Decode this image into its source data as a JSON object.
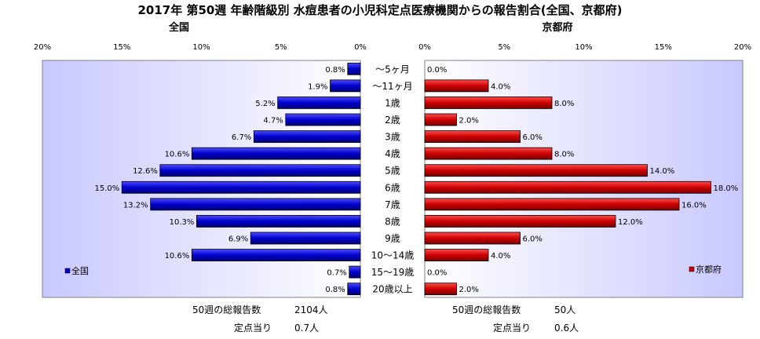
{
  "chart_data": {
    "type": "bar",
    "title": "2017年 第50週 年齢階級別 水痘患者の小児科定点医療機関からの報告割合(全国、京都府)",
    "categories": [
      "～5ヶ月",
      "～11ヶ月",
      "1歳",
      "2歳",
      "3歳",
      "4歳",
      "5歳",
      "6歳",
      "7歳",
      "8歳",
      "9歳",
      "10～14歳",
      "15～19歳",
      "20歳以上"
    ],
    "xlim": [
      0,
      20
    ],
    "ticks": [
      "20%",
      "15%",
      "10%",
      "5%",
      "0%"
    ],
    "ticks_right": [
      "0%",
      "5%",
      "10%",
      "15%",
      "20%"
    ],
    "grid": false,
    "series": [
      {
        "name": "全国",
        "side": "left",
        "color": "#0000cc",
        "values": [
          0.8,
          1.9,
          5.2,
          4.7,
          6.7,
          10.6,
          12.6,
          15.0,
          13.2,
          10.3,
          6.9,
          10.6,
          0.7,
          0.8
        ],
        "labels": [
          "0.8%",
          "1.9%",
          "5.2%",
          "4.7%",
          "6.7%",
          "10.6%",
          "12.6%",
          "15.0%",
          "13.2%",
          "10.3%",
          "6.9%",
          "10.6%",
          "0.7%",
          "0.8%"
        ],
        "legend": "全国",
        "legend_position": "bottom-left"
      },
      {
        "name": "京都府",
        "side": "right",
        "color": "#cc0000",
        "values": [
          0.0,
          4.0,
          8.0,
          2.0,
          6.0,
          8.0,
          14.0,
          18.0,
          16.0,
          12.0,
          6.0,
          4.0,
          0.0,
          2.0
        ],
        "labels": [
          "0.0%",
          "4.0%",
          "8.0%",
          "2.0%",
          "6.0%",
          "8.0%",
          "14.0%",
          "18.0%",
          "16.0%",
          "12.0%",
          "6.0%",
          "4.0%",
          "0.0%",
          "2.0%"
        ],
        "legend": "京都府",
        "legend_position": "bottom-right"
      }
    ],
    "panel_titles": {
      "left": "全国",
      "right": "京都府"
    },
    "footer": {
      "left": {
        "total_label": "50週の総報告数",
        "total_value": "2104人",
        "per_label": "定点当り",
        "per_value": "0.7人"
      },
      "right": {
        "total_label": "50週の総報告数",
        "total_value": "50人",
        "per_label": "定点当り",
        "per_value": "0.6人"
      }
    },
    "colors": {
      "plot_bg_from": "#ffffff",
      "plot_bg_to": "#c8c8ff"
    }
  }
}
